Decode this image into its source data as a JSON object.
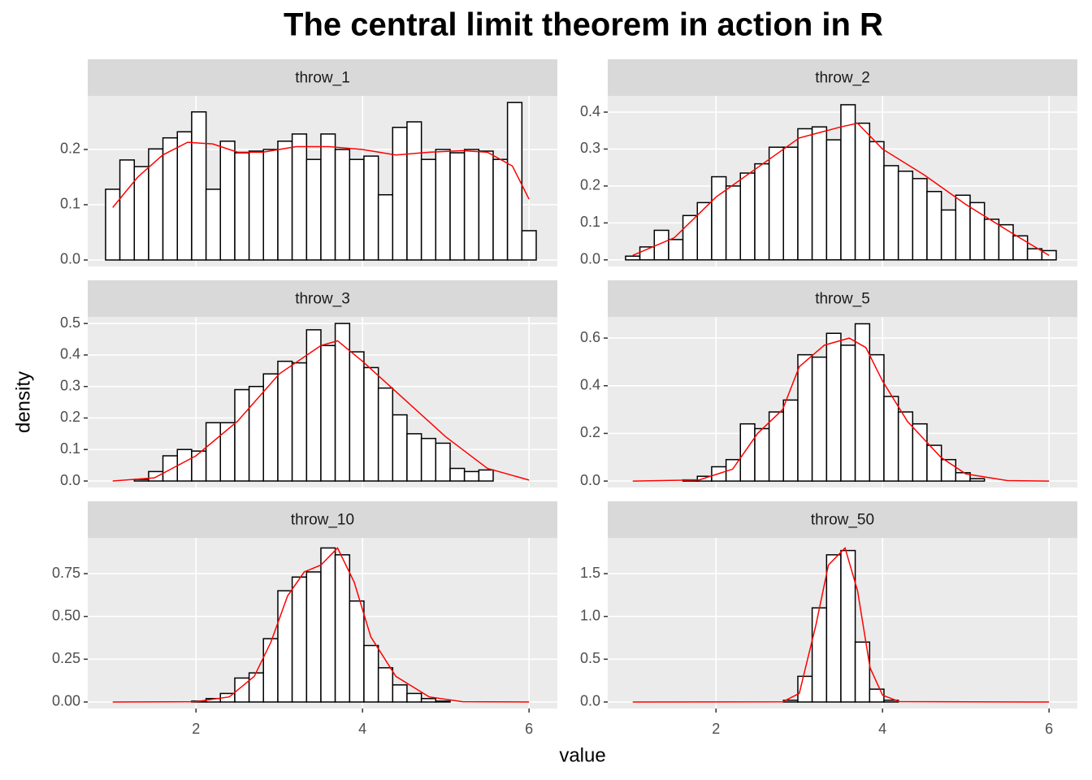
{
  "title": "The central limit theorem in action in R",
  "xlabel": "value",
  "ylabel": "density",
  "chart_data": [
    {
      "type": "histogram",
      "title": "throw_1",
      "xlim": [
        0.7,
        6.34
      ],
      "xticks": [
        2,
        4,
        6
      ],
      "ylim": [
        -0.0118,
        0.297
      ],
      "yticks": [
        {
          "value": 0,
          "label": "0.0"
        },
        0.1,
        0.2
      ],
      "bins": [
        0.914,
        1.086,
        1.259,
        1.431,
        1.603,
        1.776,
        1.948,
        2.121,
        2.293,
        2.466,
        2.638,
        2.81,
        2.983,
        3.155,
        3.328,
        3.5,
        3.672,
        3.845,
        4.017,
        4.19,
        4.362,
        4.534,
        4.707,
        4.879,
        5.052,
        5.224,
        5.397,
        5.569,
        5.741,
        5.914,
        6.086
      ],
      "values": [
        0.128,
        0.181,
        0.169,
        0.201,
        0.221,
        0.232,
        0.268,
        0.128,
        0.215,
        0.194,
        0.197,
        0.2,
        0.215,
        0.228,
        0.182,
        0.228,
        0.2,
        0.182,
        0.188,
        0.118,
        0.24,
        0.25,
        0.182,
        0.2,
        0.194,
        0.2,
        0.197,
        0.182,
        0.285,
        0.053
      ],
      "fill": "#ffffff",
      "edge_color": "#000000",
      "line": {
        "color": "#ff0000",
        "x": [
          1,
          1.3,
          1.6,
          1.9,
          2.2,
          2.5,
          2.8,
          3.2,
          3.6,
          4.0,
          4.4,
          4.8,
          5.2,
          5.5,
          5.8,
          6.0
        ],
        "y": [
          0.095,
          0.15,
          0.19,
          0.213,
          0.21,
          0.195,
          0.195,
          0.205,
          0.205,
          0.2,
          0.19,
          0.195,
          0.198,
          0.195,
          0.17,
          0.11
        ]
      }
    },
    {
      "type": "histogram",
      "title": "throw_2",
      "xlim": [
        0.7,
        6.34
      ],
      "xticks": [
        2,
        4,
        6
      ],
      "ylim": [
        -0.018,
        0.444
      ],
      "yticks": [
        {
          "value": 0,
          "label": "0.0"
        },
        0.1,
        0.2,
        0.3,
        0.4
      ],
      "bins": [
        0.914,
        1.086,
        1.259,
        1.431,
        1.603,
        1.776,
        1.948,
        2.121,
        2.293,
        2.466,
        2.638,
        2.81,
        2.983,
        3.155,
        3.328,
        3.5,
        3.672,
        3.845,
        4.017,
        4.19,
        4.362,
        4.534,
        4.707,
        4.879,
        5.052,
        5.224,
        5.397,
        5.569,
        5.741,
        5.914,
        6.086
      ],
      "values": [
        0.01,
        0.035,
        0.08,
        0.055,
        0.12,
        0.155,
        0.225,
        0.2,
        0.235,
        0.26,
        0.305,
        0.305,
        0.355,
        0.36,
        0.325,
        0.42,
        0.37,
        0.32,
        0.255,
        0.24,
        0.22,
        0.185,
        0.135,
        0.175,
        0.155,
        0.11,
        0.095,
        0.065,
        0.03,
        0.025
      ],
      "fill": "#ffffff",
      "edge_color": "#000000",
      "line": {
        "color": "#ff0000",
        "x": [
          1,
          1.5,
          2,
          2.5,
          3,
          3.5,
          3.7,
          4,
          4.5,
          5,
          5.5,
          6
        ],
        "y": [
          0.012,
          0.06,
          0.17,
          0.25,
          0.33,
          0.36,
          0.37,
          0.3,
          0.23,
          0.15,
          0.08,
          0.012
        ]
      }
    },
    {
      "type": "histogram",
      "title": "throw_3",
      "xlim": [
        0.7,
        6.34
      ],
      "xticks": [
        2,
        4,
        6
      ],
      "ylim": [
        -0.0206,
        0.521
      ],
      "yticks": [
        {
          "value": 0,
          "label": "0.0"
        },
        0.1,
        0.2,
        0.3,
        0.4,
        0.5
      ],
      "bins": [
        0.914,
        1.086,
        1.259,
        1.431,
        1.603,
        1.776,
        1.948,
        2.121,
        2.293,
        2.466,
        2.638,
        2.81,
        2.983,
        3.155,
        3.328,
        3.5,
        3.672,
        3.845,
        4.017,
        4.19,
        4.362,
        4.534,
        4.707,
        4.879,
        5.052,
        5.224,
        5.397,
        5.569,
        5.741,
        5.914,
        6.086
      ],
      "values": [
        0,
        0,
        0.005,
        0.03,
        0.08,
        0.1,
        0.095,
        0.185,
        0.185,
        0.29,
        0.3,
        0.34,
        0.38,
        0.375,
        0.48,
        0.43,
        0.5,
        0.41,
        0.36,
        0.295,
        0.21,
        0.15,
        0.135,
        0.12,
        0.04,
        0.03,
        0.035,
        0,
        0,
        0
      ],
      "fill": "#ffffff",
      "edge_color": "#000000",
      "line": {
        "color": "#ff0000",
        "x": [
          1,
          1.5,
          2,
          2.5,
          3,
          3.5,
          3.7,
          4,
          4.5,
          5,
          5.5,
          6
        ],
        "y": [
          0,
          0.01,
          0.08,
          0.19,
          0.34,
          0.43,
          0.445,
          0.38,
          0.26,
          0.14,
          0.04,
          0.003
        ]
      }
    },
    {
      "type": "histogram",
      "title": "throw_5",
      "xlim": [
        0.7,
        6.34
      ],
      "xticks": [
        2,
        4,
        6
      ],
      "ylim": [
        -0.027,
        0.689
      ],
      "yticks": [
        {
          "value": 0,
          "label": "0.0"
        },
        0.2,
        0.4,
        0.6
      ],
      "bins": [
        0.914,
        1.086,
        1.259,
        1.431,
        1.603,
        1.776,
        1.948,
        2.121,
        2.293,
        2.466,
        2.638,
        2.81,
        2.983,
        3.155,
        3.328,
        3.5,
        3.672,
        3.845,
        4.017,
        4.19,
        4.362,
        4.534,
        4.707,
        4.879,
        5.052,
        5.224,
        5.397,
        5.569,
        5.741,
        5.914,
        6.086
      ],
      "values": [
        0,
        0,
        0,
        0,
        0.005,
        0.02,
        0.06,
        0.09,
        0.24,
        0.22,
        0.29,
        0.34,
        0.53,
        0.52,
        0.62,
        0.57,
        0.66,
        0.53,
        0.355,
        0.29,
        0.24,
        0.15,
        0.09,
        0.035,
        0.01,
        0,
        0,
        0,
        0,
        0
      ],
      "fill": "#ffffff",
      "edge_color": "#000000",
      "line": {
        "color": "#ff0000",
        "x": [
          1,
          1.8,
          2.2,
          2.5,
          2.8,
          3.0,
          3.3,
          3.6,
          3.8,
          4.0,
          4.3,
          4.7,
          5.0,
          5.5,
          6
        ],
        "y": [
          0,
          0.005,
          0.05,
          0.2,
          0.3,
          0.48,
          0.57,
          0.6,
          0.56,
          0.42,
          0.25,
          0.1,
          0.03,
          0.002,
          0
        ]
      }
    },
    {
      "type": "histogram",
      "title": "throw_10",
      "xlim": [
        0.7,
        6.34
      ],
      "xticks": [
        2,
        4,
        6
      ],
      "ylim": [
        -0.038,
        0.959
      ],
      "yticks": [
        {
          "value": 0,
          "label": "0.00"
        },
        0.25,
        {
          "value": 0.5,
          "label": "0.50"
        },
        0.75
      ],
      "bins": [
        0.914,
        1.086,
        1.259,
        1.431,
        1.603,
        1.776,
        1.948,
        2.121,
        2.293,
        2.466,
        2.638,
        2.81,
        2.983,
        3.155,
        3.328,
        3.5,
        3.672,
        3.845,
        4.017,
        4.19,
        4.362,
        4.534,
        4.707,
        4.879,
        5.052,
        5.224,
        5.397,
        5.569,
        5.741,
        5.914,
        6.086
      ],
      "values": [
        0,
        0,
        0,
        0,
        0,
        0,
        0.005,
        0.02,
        0.05,
        0.14,
        0.17,
        0.37,
        0.65,
        0.73,
        0.76,
        0.9,
        0.86,
        0.59,
        0.33,
        0.2,
        0.1,
        0.05,
        0.02,
        0.005,
        0,
        0,
        0,
        0,
        0,
        0
      ],
      "fill": "#ffffff",
      "edge_color": "#000000",
      "line": {
        "color": "#ff0000",
        "x": [
          1,
          2,
          2.4,
          2.7,
          2.9,
          3.1,
          3.3,
          3.5,
          3.7,
          3.9,
          4.1,
          4.4,
          4.8,
          5.2,
          6
        ],
        "y": [
          0,
          0.002,
          0.03,
          0.15,
          0.35,
          0.62,
          0.76,
          0.8,
          0.9,
          0.7,
          0.38,
          0.15,
          0.03,
          0.002,
          0
        ]
      }
    },
    {
      "type": "histogram",
      "title": "throw_50",
      "xlim": [
        0.7,
        6.34
      ],
      "xticks": [
        2,
        4,
        6
      ],
      "ylim": [
        -0.076,
        1.918
      ],
      "yticks": [
        {
          "value": 0,
          "label": "0.0"
        },
        0.5,
        {
          "value": 1,
          "label": "1.0"
        },
        1.5
      ],
      "bins": [
        0.914,
        1.086,
        1.259,
        1.431,
        1.603,
        1.776,
        1.948,
        2.121,
        2.293,
        2.466,
        2.638,
        2.81,
        2.983,
        3.155,
        3.328,
        3.5,
        3.672,
        3.845,
        4.017,
        4.19,
        4.362,
        4.534,
        4.707,
        4.879,
        5.052,
        5.224,
        5.397,
        5.569,
        5.741,
        5.914,
        6.086
      ],
      "values": [
        0,
        0,
        0,
        0,
        0,
        0,
        0,
        0,
        0,
        0,
        0,
        0.02,
        0.3,
        1.1,
        1.72,
        1.77,
        0.7,
        0.15,
        0.02,
        0,
        0,
        0,
        0,
        0,
        0,
        0,
        0,
        0,
        0,
        0
      ],
      "fill": "#ffffff",
      "edge_color": "#000000",
      "line": {
        "color": "#ff0000",
        "x": [
          1,
          2.8,
          3.0,
          3.2,
          3.35,
          3.55,
          3.7,
          3.85,
          4.0,
          4.2,
          6
        ],
        "y": [
          0,
          0.002,
          0.1,
          0.9,
          1.6,
          1.8,
          1.3,
          0.4,
          0.08,
          0.005,
          0
        ]
      }
    }
  ]
}
